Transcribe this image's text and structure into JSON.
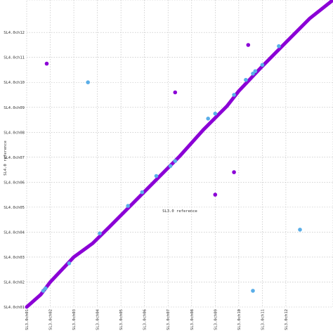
{
  "chart_data": {
    "type": "scatter",
    "title": "",
    "xlabel": "SL3.0 reference",
    "ylabel": "SL4.0 reference",
    "xlim": [
      0,
      13
    ],
    "ylim": [
      0,
      12.3
    ],
    "grid": true,
    "x_ticks": [
      {
        "value": 0,
        "label": "SL3.0ch01"
      },
      {
        "value": 1,
        "label": "SL3.0ch02"
      },
      {
        "value": 2,
        "label": "SL3.0ch03"
      },
      {
        "value": 3,
        "label": "SL3.0ch04"
      },
      {
        "value": 4,
        "label": "SL3.0ch05"
      },
      {
        "value": 5,
        "label": "SL3.0ch06"
      },
      {
        "value": 6,
        "label": "SL3.0ch07"
      },
      {
        "value": 7,
        "label": "SL3.0ch08"
      },
      {
        "value": 8,
        "label": "SL3.0ch09"
      },
      {
        "value": 9,
        "label": "SL3.0ch10"
      },
      {
        "value": 10,
        "label": "SL3.0ch11"
      },
      {
        "value": 11,
        "label": "SL3.0ch12"
      }
    ],
    "y_ticks": [
      {
        "value": 0,
        "label": "SL4.0ch01"
      },
      {
        "value": 1,
        "label": "SL4.0ch02"
      },
      {
        "value": 2,
        "label": "SL4.0ch03"
      },
      {
        "value": 3,
        "label": "SL4.0ch04"
      },
      {
        "value": 4,
        "label": "SL4.0ch05"
      },
      {
        "value": 5,
        "label": "SL4.0ch06"
      },
      {
        "value": 6,
        "label": "SL4.0ch07"
      },
      {
        "value": 7,
        "label": "SL4.0ch08"
      },
      {
        "value": 8,
        "label": "SL4.0ch09"
      },
      {
        "value": 9,
        "label": "SL4.0ch10"
      },
      {
        "value": 10,
        "label": "SL4.0ch11"
      },
      {
        "value": 11,
        "label": "SL4.0ch12"
      }
    ],
    "colors": {
      "forward": "#8b00d6",
      "reverse": "#5aaee8",
      "grid": "#b8b8b8"
    },
    "series": [
      {
        "color": "#8b00d6",
        "kind": "line",
        "x": [
          0,
          0.6,
          1.0,
          1.5,
          2.0,
          2.8,
          3.5,
          4.5,
          5.5,
          6.5,
          7.5,
          8.5,
          9.0,
          10.0,
          11.0,
          12.0,
          13.0
        ],
        "y": [
          0,
          0.5,
          1.0,
          1.5,
          2.0,
          2.55,
          3.2,
          4.15,
          5.1,
          6.05,
          7.1,
          8.05,
          8.65,
          9.65,
          10.6,
          11.55,
          12.3
        ]
      },
      {
        "color": "#8b00d6",
        "kind": "points",
        "x": [
          0.85,
          6.3,
          8.0,
          8.8,
          9.4
        ],
        "y": [
          9.75,
          8.6,
          4.5,
          5.4,
          10.5
        ]
      },
      {
        "color": "#5aaee8",
        "kind": "points",
        "x": [
          0.7,
          0.8,
          1.8,
          3.1,
          4.3,
          4.9,
          5.5,
          6.1,
          6.3,
          7.7,
          8.0,
          8.8,
          9.3,
          9.6,
          9.7,
          10.0,
          10.7,
          2.6,
          11.6,
          9.6
        ],
        "y": [
          0.65,
          0.75,
          1.75,
          2.95,
          4.05,
          4.6,
          5.25,
          5.65,
          5.85,
          7.55,
          7.75,
          8.5,
          9.1,
          9.35,
          9.45,
          9.7,
          10.45,
          9.0,
          3.1,
          0.65
        ]
      }
    ]
  }
}
